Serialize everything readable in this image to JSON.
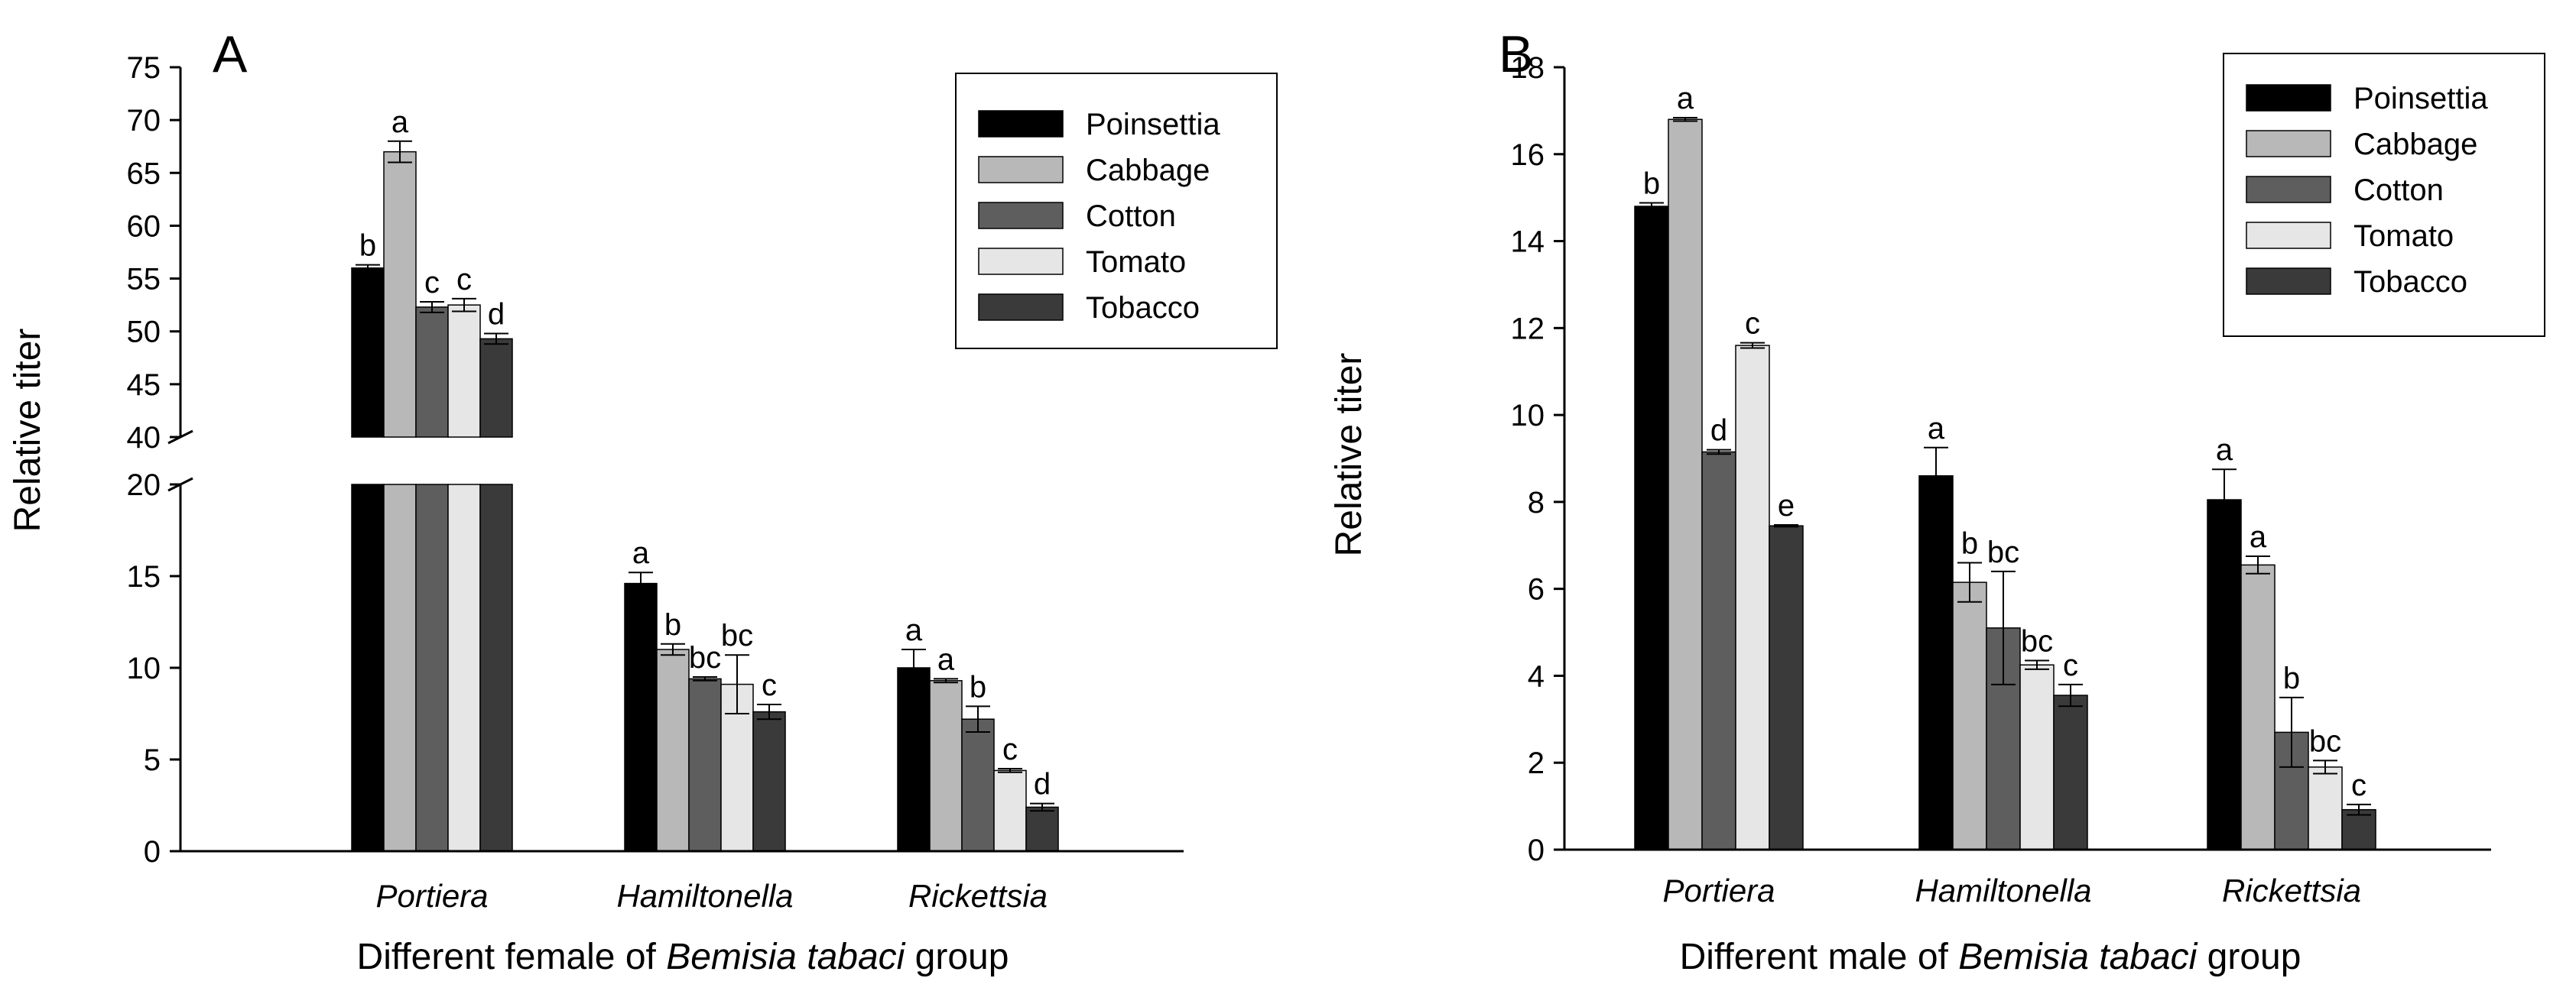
{
  "colors": {
    "Poinsettia": "#000000",
    "Cabbage": "#b8b8b8",
    "Cotton": "#5e5e5e",
    "Tomato": "#e6e6e6",
    "Tobacco": "#3a3a3a"
  },
  "chart_data": [
    {
      "type": "bar",
      "panel": "A",
      "categories": [
        "Portiera",
        "Hamiltonella",
        "Rickettsia"
      ],
      "xlabel": "Different female of Bemisia tabaci group",
      "xlabel_parts": [
        "Different female of ",
        "Bemisia tabaci",
        " group"
      ],
      "ylabel": "Relative titer",
      "y_axis_break": {
        "lower": [
          0,
          20
        ],
        "upper": [
          40,
          75
        ]
      },
      "yticks_lower": [
        "0",
        "5",
        "10",
        "15",
        "20"
      ],
      "yticks_upper": [
        "40",
        "45",
        "50",
        "55",
        "60",
        "65",
        "70",
        "75"
      ],
      "legend": [
        "Poinsettia",
        "Cabbage",
        "Cotton",
        "Tomato",
        "Tobacco"
      ],
      "legend_position": "top-right",
      "series": [
        {
          "name": "Poinsettia",
          "values": [
            56.0,
            14.6,
            10.0
          ],
          "errors": [
            0.3,
            0.6,
            1.0
          ],
          "letters": [
            "b",
            "a",
            "a"
          ]
        },
        {
          "name": "Cabbage",
          "values": [
            67.0,
            11.0,
            9.3
          ],
          "errors": [
            1.0,
            0.3,
            0.1
          ],
          "letters": [
            "a",
            "b",
            "a"
          ]
        },
        {
          "name": "Cotton",
          "values": [
            52.3,
            9.4,
            7.2
          ],
          "errors": [
            0.5,
            0.1,
            0.7
          ],
          "letters": [
            "c",
            "bc",
            "b"
          ]
        },
        {
          "name": "Tomato",
          "values": [
            52.5,
            9.1,
            4.4
          ],
          "errors": [
            0.6,
            1.6,
            0.1
          ],
          "letters": [
            "c",
            "bc",
            "c"
          ]
        },
        {
          "name": "Tobacco",
          "values": [
            49.3,
            7.6,
            2.4
          ],
          "errors": [
            0.5,
            0.4,
            0.2
          ],
          "letters": [
            "d",
            "c",
            "d"
          ]
        }
      ]
    },
    {
      "type": "bar",
      "panel": "B",
      "categories": [
        "Portiera",
        "Hamiltonella",
        "Rickettsia"
      ],
      "xlabel": "Different male of Bemisia tabaci group",
      "xlabel_parts": [
        "Different male of ",
        "Bemisia tabaci",
        " group"
      ],
      "ylabel": "Relative titer",
      "ylim": [
        0,
        18
      ],
      "yticks": [
        "0",
        "2",
        "4",
        "6",
        "8",
        "10",
        "12",
        "14",
        "16",
        "18"
      ],
      "legend": [
        "Poinsettia",
        "Cabbage",
        "Cotton",
        "Tomato",
        "Tobacco"
      ],
      "legend_position": "top-right",
      "series": [
        {
          "name": "Poinsettia",
          "values": [
            14.8,
            8.6,
            8.05
          ],
          "errors": [
            0.08,
            0.65,
            0.7
          ],
          "letters": [
            "b",
            "a",
            "a"
          ]
        },
        {
          "name": "Cabbage",
          "values": [
            16.8,
            6.15,
            6.55
          ],
          "errors": [
            0.04,
            0.45,
            0.2
          ],
          "letters": [
            "a",
            "b",
            "a"
          ]
        },
        {
          "name": "Cotton",
          "values": [
            9.15,
            5.1,
            2.7
          ],
          "errors": [
            0.05,
            1.3,
            0.8
          ],
          "letters": [
            "d",
            "bc",
            "b"
          ]
        },
        {
          "name": "Tomato",
          "values": [
            11.6,
            4.25,
            1.9
          ],
          "errors": [
            0.06,
            0.1,
            0.15
          ],
          "letters": [
            "c",
            "bc",
            "bc"
          ]
        },
        {
          "name": "Tobacco",
          "values": [
            7.45,
            3.55,
            0.92
          ],
          "errors": [
            0.02,
            0.25,
            0.12
          ],
          "letters": [
            "e",
            "c",
            "c"
          ]
        }
      ]
    }
  ]
}
